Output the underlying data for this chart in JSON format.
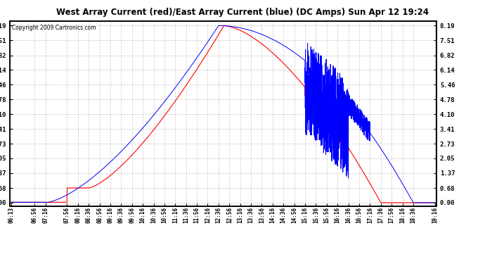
{
  "title": "West Array Current (red)/East Array Current (blue) (DC Amps) Sun Apr 12 19:24",
  "copyright": "Copyright 2009 Cartronics.com",
  "background_color": "#ffffff",
  "plot_bg_color": "#ffffff",
  "grid_color": "#bbbbbb",
  "red_color": "#ff0000",
  "blue_color": "#0000ff",
  "yticks": [
    0.0,
    0.68,
    1.37,
    2.05,
    2.73,
    3.41,
    4.1,
    4.78,
    5.46,
    6.14,
    6.82,
    7.51,
    8.19
  ],
  "ylim": [
    0.0,
    8.19
  ],
  "xtick_labels": [
    "06:13",
    "06:56",
    "07:16",
    "07:56",
    "08:16",
    "08:36",
    "08:56",
    "09:16",
    "09:36",
    "09:56",
    "10:16",
    "10:36",
    "10:56",
    "11:16",
    "11:36",
    "11:56",
    "12:16",
    "12:36",
    "12:56",
    "13:16",
    "13:36",
    "13:56",
    "14:16",
    "14:36",
    "14:56",
    "15:16",
    "15:36",
    "15:56",
    "16:16",
    "16:36",
    "16:56",
    "17:16",
    "17:36",
    "17:56",
    "18:16",
    "18:36",
    "19:16"
  ]
}
